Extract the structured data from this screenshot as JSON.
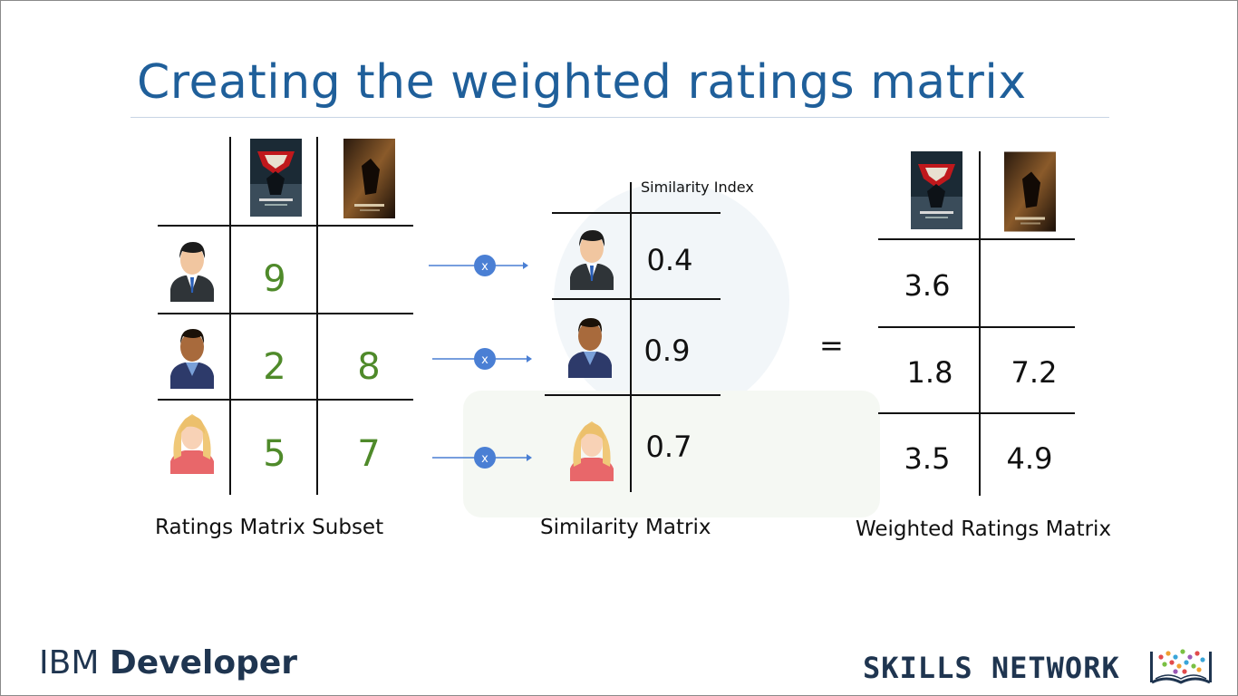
{
  "title": "Creating the weighted ratings matrix",
  "ratings_matrix": {
    "caption": "Ratings Matrix Subset",
    "rows": [
      {
        "user": "man-suit-user-icon",
        "values": [
          "9",
          ""
        ]
      },
      {
        "user": "man-dark-skin-user-icon",
        "values": [
          "2",
          "8"
        ]
      },
      {
        "user": "woman-blonde-user-icon",
        "values": [
          "5",
          "7"
        ]
      }
    ]
  },
  "operator": {
    "multiply": "x"
  },
  "similarity_matrix": {
    "caption": "Similarity Matrix",
    "header": "Similarity Index",
    "values": [
      "0.4",
      "0.9",
      "0.7"
    ]
  },
  "equals": "=",
  "weighted_matrix": {
    "caption": "Weighted Ratings Matrix",
    "rows": [
      [
        "3.6",
        ""
      ],
      [
        "1.8",
        "7.2"
      ],
      [
        "3.5",
        "4.9"
      ]
    ]
  },
  "footer": {
    "brand_light": "IBM ",
    "brand_bold": "Developer",
    "network": "SKILLS NETWORK"
  },
  "colors": {
    "title": "#1f5f9a",
    "rating_green": "#4f8a2a",
    "operator_blue": "#4a7fd4",
    "footer_navy": "#1f3550"
  }
}
